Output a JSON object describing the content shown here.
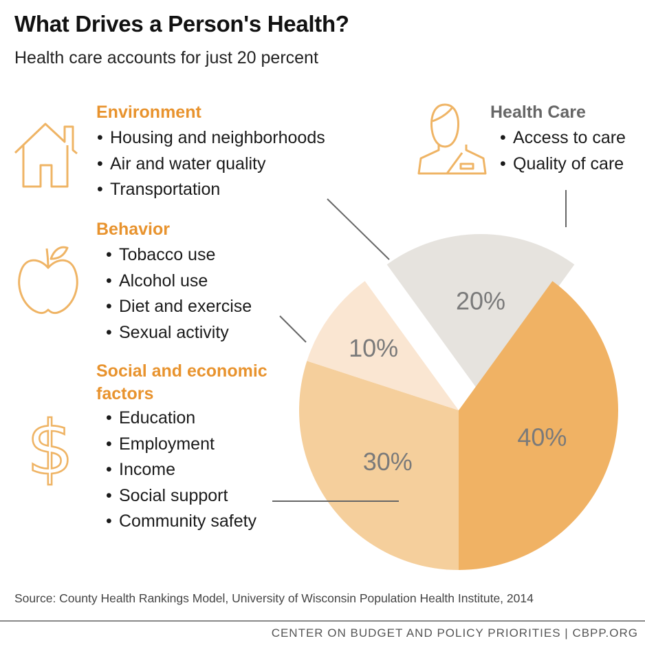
{
  "title": "What Drives a Person's Health?",
  "subtitle": "Health care accounts for just 20 percent",
  "categories": {
    "environment": {
      "label": "Environment",
      "items": [
        "Housing and neighborhoods",
        "Air and water quality",
        "Transportation"
      ]
    },
    "behavior": {
      "label": "Behavior",
      "items": [
        "Tobacco use",
        "Alcohol use",
        "Diet and exercise",
        "Sexual activity"
      ]
    },
    "social": {
      "label_line1": "Social and economic",
      "label_line2": "factors",
      "items": [
        "Education",
        "Employment",
        "Income",
        "Social support",
        "Community safety"
      ]
    },
    "health_care": {
      "label": "Health Care",
      "items": [
        "Access to care",
        "Quality of care"
      ]
    }
  },
  "icons": {
    "environment": "house-icon",
    "behavior": "apple-icon",
    "social": "dollar-sign-icon",
    "health_care": "person-icon"
  },
  "chart_data": {
    "type": "pie",
    "slices": [
      {
        "label": "Health Care",
        "value": 20,
        "display": "20%",
        "color": "#e6e3de",
        "exploded": true
      },
      {
        "label": "Social and economic factors",
        "value": 40,
        "display": "40%",
        "color": "#f0b264"
      },
      {
        "label": "Behavior",
        "value": 30,
        "display": "30%",
        "color": "#f5cf9c"
      },
      {
        "label": "Environment",
        "value": 10,
        "display": "10%",
        "color": "#fae6d2"
      }
    ]
  },
  "colors": {
    "accent": "#e8932e",
    "label_text": "#7a7a7a",
    "leader_line": "#666666"
  },
  "source": "Source: County Health Rankings Model, University of Wisconsin Population Health Institute, 2014",
  "footer": "CENTER ON BUDGET AND POLICY PRIORITIES | CBPP.ORG"
}
